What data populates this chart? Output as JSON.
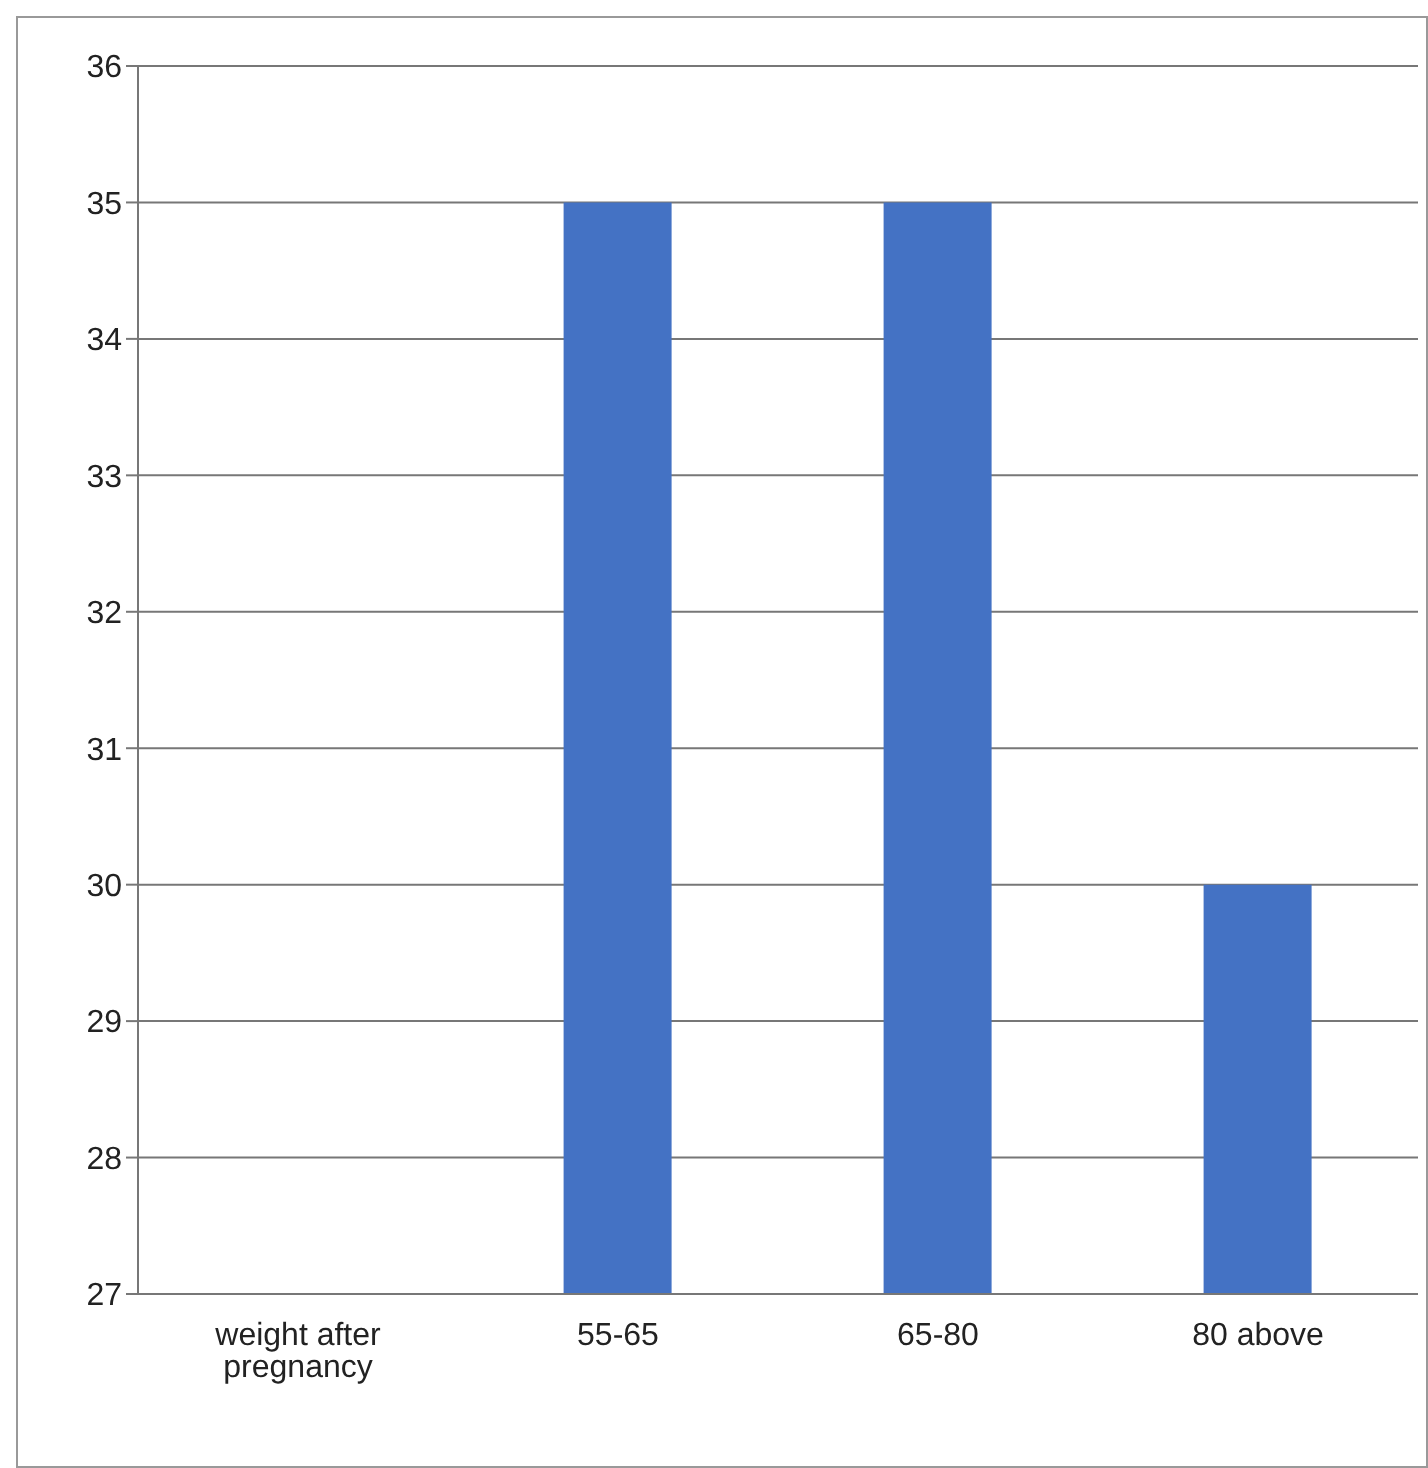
{
  "chart_data": {
    "type": "bar",
    "categories": [
      "weight after pregnancy",
      "55-65",
      "65-80",
      "80 above"
    ],
    "values": [
      null,
      35,
      35,
      30
    ],
    "color": "#4472c4",
    "ylim": [
      27,
      36
    ],
    "yticks": [
      27,
      28,
      29,
      30,
      31,
      32,
      33,
      34,
      35,
      36
    ],
    "grid": "y"
  }
}
